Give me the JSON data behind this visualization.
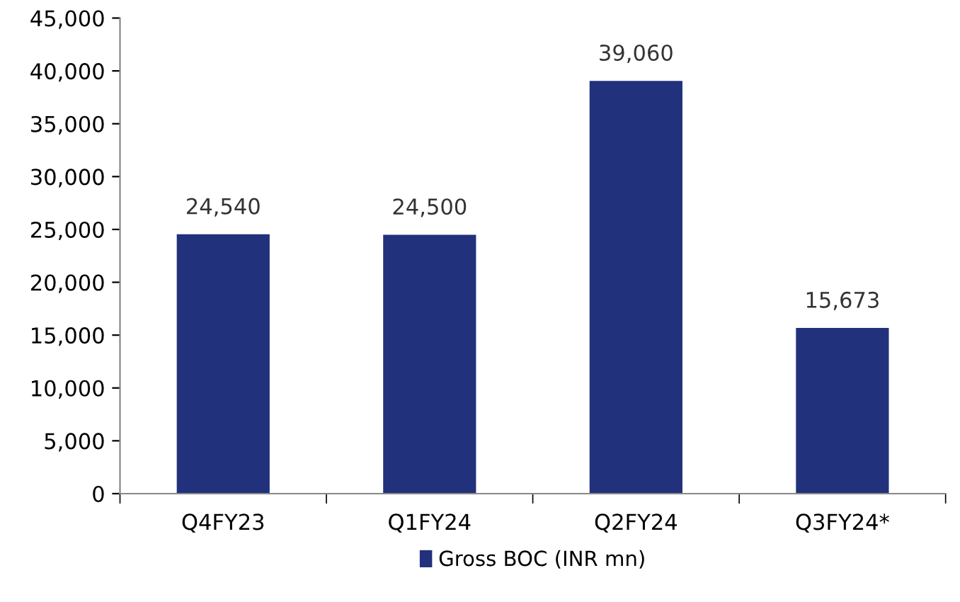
{
  "chart_data": {
    "type": "bar",
    "categories": [
      "Q4FY23",
      "Q1FY24",
      "Q2FY24",
      "Q3FY24*"
    ],
    "series": [
      {
        "name": "Gross BOC (INR mn)",
        "color": "#22317b",
        "values": [
          24540,
          24500,
          39060,
          15673
        ]
      }
    ],
    "ylim": [
      0,
      45000
    ],
    "yticks": [
      {
        "value": 0,
        "label": "0"
      },
      {
        "value": 5000,
        "label": "5,000"
      },
      {
        "value": 10000,
        "label": "10,000"
      },
      {
        "value": 15000,
        "label": "15,000"
      },
      {
        "value": 20000,
        "label": "20,000"
      },
      {
        "value": 25000,
        "label": "25,000"
      },
      {
        "value": 30000,
        "label": "30,000"
      },
      {
        "value": 35000,
        "label": "35,000"
      },
      {
        "value": 40000,
        "label": "40,000"
      },
      {
        "value": 45000,
        "label": "45,000"
      }
    ],
    "value_labels": [
      "24,540",
      "24,500",
      "39,060",
      "15,673"
    ],
    "legend": "bottom",
    "grid": false
  }
}
